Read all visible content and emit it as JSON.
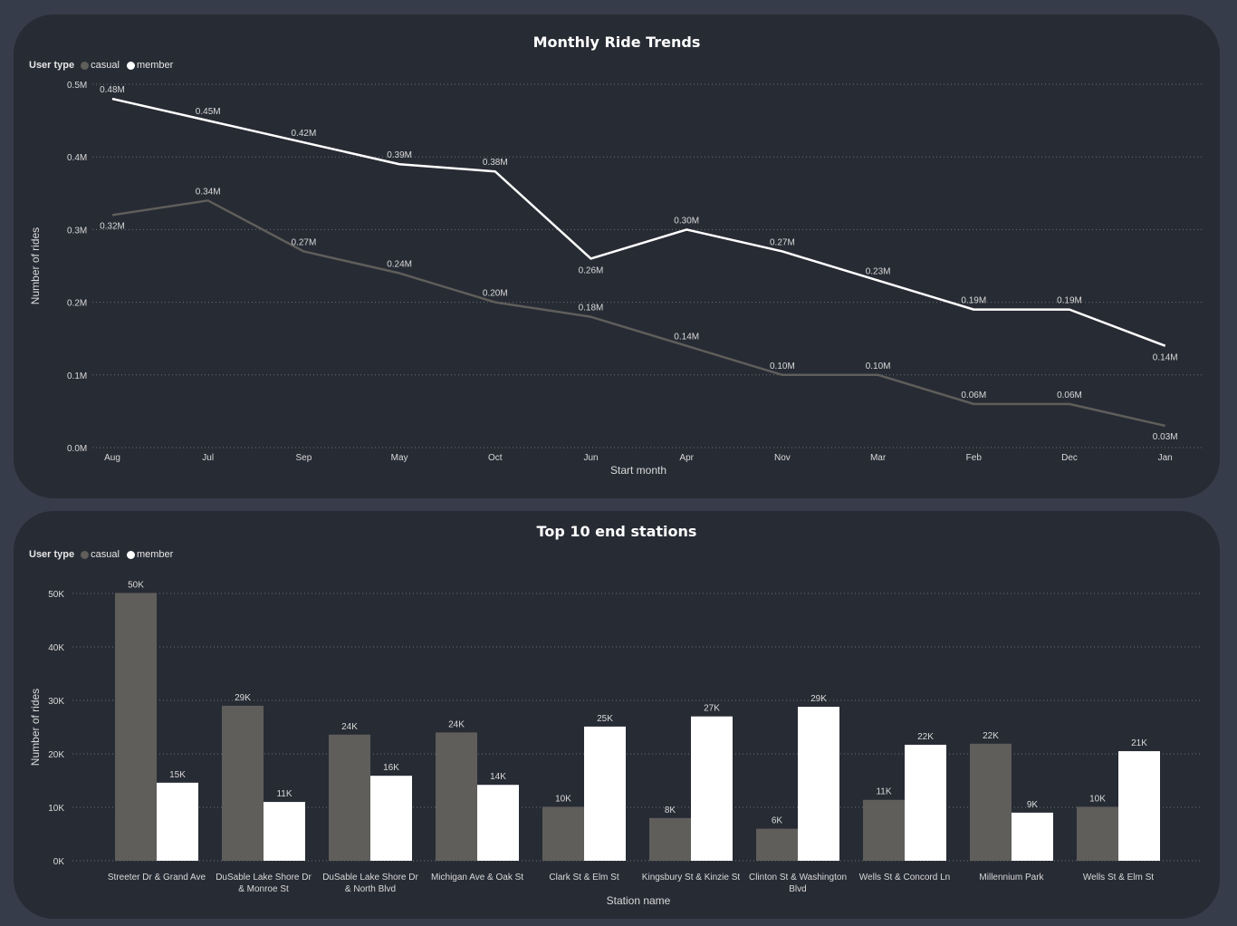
{
  "colors": {
    "casual": "#5f5e5b",
    "member": "#ffffff",
    "grid": "#6b6f78",
    "text": "#d9d9d9"
  },
  "legend": {
    "title": "User type",
    "items": [
      {
        "label": "casual",
        "color": "#5f5e5b"
      },
      {
        "label": "member",
        "color": "#ffffff"
      }
    ]
  },
  "chart_data": [
    {
      "type": "line",
      "title": "Monthly Ride Trends",
      "xlabel": "Start month",
      "ylabel": "Number of rides",
      "categories": [
        "Aug",
        "Jul",
        "Sep",
        "May",
        "Oct",
        "Jun",
        "Apr",
        "Nov",
        "Mar",
        "Feb",
        "Dec",
        "Jan"
      ],
      "ylim": [
        0,
        0.5
      ],
      "yticks": [
        "0.0M",
        "0.1M",
        "0.2M",
        "0.3M",
        "0.4M",
        "0.5M"
      ],
      "grid": true,
      "legend_position": "top-left",
      "series": [
        {
          "name": "casual",
          "values": [
            0.32,
            0.34,
            0.27,
            0.24,
            0.2,
            0.18,
            0.14,
            0.1,
            0.1,
            0.06,
            0.06,
            0.03
          ],
          "labels": [
            "0.32M",
            "0.34M",
            "0.27M",
            "0.24M",
            "0.20M",
            "0.18M",
            "0.14M",
            "0.10M",
            "0.10M",
            "0.06M",
            "0.06M",
            "0.03M"
          ]
        },
        {
          "name": "member",
          "values": [
            0.48,
            0.45,
            0.42,
            0.39,
            0.38,
            0.26,
            0.3,
            0.27,
            0.23,
            0.19,
            0.19,
            0.14
          ],
          "labels": [
            "0.48M",
            "0.45M",
            "0.42M",
            "0.39M",
            "0.38M",
            "0.26M",
            "0.30M",
            "0.27M",
            "0.23M",
            "0.19M",
            "0.19M",
            "0.14M"
          ]
        }
      ]
    },
    {
      "type": "bar",
      "title": "Top 10 end stations",
      "xlabel": "Station name",
      "ylabel": "Number of rides",
      "categories": [
        "Streeter Dr & Grand Ave",
        "DuSable Lake Shore Dr & Monroe St",
        "DuSable Lake Shore Dr & North Blvd",
        "Michigan Ave & Oak St",
        "Clark St & Elm St",
        "Kingsbury St & Kinzie St",
        "Clinton St & Washington Blvd",
        "Wells St & Concord Ln",
        "Millennium Park",
        "Wells St & Elm St"
      ],
      "category_lines": [
        [
          "Streeter Dr & Grand Ave"
        ],
        [
          "DuSable Lake Shore Dr",
          "& Monroe St"
        ],
        [
          "DuSable Lake Shore Dr",
          "& North Blvd"
        ],
        [
          "Michigan Ave & Oak St"
        ],
        [
          "Clark St & Elm St"
        ],
        [
          "Kingsbury St & Kinzie St"
        ],
        [
          "Clinton St & Washington",
          "Blvd"
        ],
        [
          "Wells St & Concord Ln"
        ],
        [
          "Millennium Park"
        ],
        [
          "Wells St & Elm St"
        ]
      ],
      "ylim": [
        0,
        50000
      ],
      "yticks": [
        "0K",
        "10K",
        "20K",
        "30K",
        "40K",
        "50K"
      ],
      "grid": true,
      "legend_position": "top-left",
      "series": [
        {
          "name": "casual",
          "values": [
            50100,
            29000,
            23600,
            24000,
            10100,
            8000,
            6000,
            11400,
            21900,
            10100
          ],
          "labels": [
            "50K",
            "29K",
            "24K",
            "24K",
            "10K",
            "8K",
            "6K",
            "11K",
            "22K",
            "10K"
          ]
        },
        {
          "name": "member",
          "values": [
            14600,
            11000,
            15900,
            14200,
            25100,
            27000,
            28800,
            21700,
            9000,
            20500
          ],
          "labels": [
            "15K",
            "11K",
            "16K",
            "14K",
            "25K",
            "27K",
            "29K",
            "22K",
            "9K",
            "21K"
          ]
        }
      ]
    }
  ]
}
